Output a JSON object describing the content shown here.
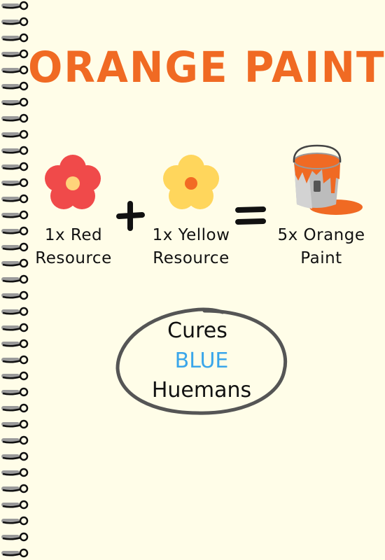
{
  "title": "ORANGE PAINT",
  "colors": {
    "background": "#fffde8",
    "title": "#f06a23",
    "red_flower": "#f04a4a",
    "yellow_flower": "#ffd65c",
    "flower_center_red": "#ffd37a",
    "flower_center_yellow": "#f26a24",
    "paint": "#f06a23",
    "highlight": "#3aa6ea",
    "oval": "#555555"
  },
  "recipe": {
    "ingredient1": {
      "icon": "red-flower-icon",
      "line1": "1x Red",
      "line2": "Resource"
    },
    "operator_plus": "+",
    "ingredient2": {
      "icon": "yellow-flower-icon",
      "line1": "1x Yellow",
      "line2": "Resource"
    },
    "operator_equals": "=",
    "result": {
      "icon": "paint-bucket-icon",
      "line1": "5x Orange",
      "line2": "Paint"
    }
  },
  "effect": {
    "line1": "Cures",
    "line2": "BLUE",
    "line3": "Huemans"
  }
}
